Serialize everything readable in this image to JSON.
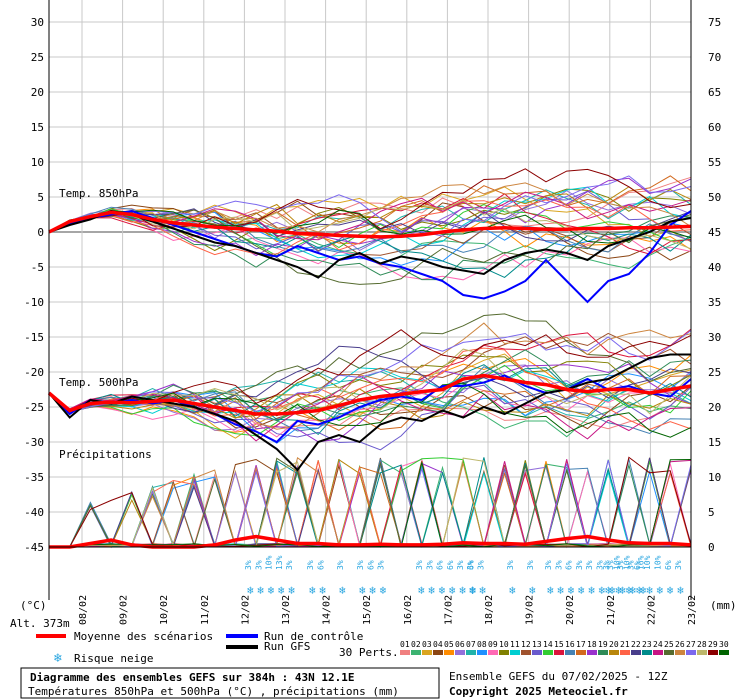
{
  "labels": {
    "t850": "Temp. 850hPa",
    "t500": "Temp. 500hPa",
    "precip": "Précipitations",
    "unit_left": "(°C)",
    "unit_right": "(mm)",
    "altitude": "Alt. 373m"
  },
  "legend": {
    "mean": "Moyenne des scénarios",
    "control": "Run de contrôle",
    "gfs": "Run GFS",
    "snow": "Risque neige",
    "perts": "30 Perts."
  },
  "footer": {
    "title": "Diagramme des ensembles GEFS sur 384h : 43N 12.1E",
    "subtitle": "Températures 850hPa et 500hPa (°C) , précipitations (mm)",
    "run": "Ensemble GEFS du 07/02/2025 - 12Z",
    "copyright": "Copyright 2025 Meteociel.fr"
  },
  "colors": {
    "mean": "#ff0000",
    "control": "#0000ff",
    "gfs": "#000000",
    "snow": "#2aa6e0",
    "members": [
      "#f08080",
      "#3cb371",
      "#daa520",
      "#8b4513",
      "#ff8c00",
      "#9370db",
      "#20b2aa",
      "#1e90ff",
      "#ff69b4",
      "#808000",
      "#00ced1",
      "#a0522d",
      "#6a5acd",
      "#32cd32",
      "#dc143c",
      "#4682b4",
      "#d2691e",
      "#9932cc",
      "#2e8b57",
      "#b8860b",
      "#ff6347",
      "#483d8b",
      "#008b8b",
      "#c71585",
      "#556b2f",
      "#cd853f",
      "#7b68ee",
      "#bdb76b",
      "#8b0000",
      "#006400"
    ]
  },
  "chart_data": {
    "type": "line",
    "x_dates": [
      "08/02",
      "09/02",
      "10/02",
      "11/02",
      "12/02",
      "13/02",
      "14/02",
      "15/02",
      "16/02",
      "17/02",
      "18/02",
      "19/02",
      "20/02",
      "21/02",
      "22/02",
      "23/02"
    ],
    "y_left_ticks": [
      30,
      25,
      20,
      15,
      10,
      5,
      0,
      -5,
      -10,
      -15,
      -20,
      -25,
      -30,
      -35,
      -40,
      -45
    ],
    "y_right_ticks": [
      75,
      70,
      65,
      60,
      55,
      50,
      45,
      40,
      35,
      30,
      25,
      20,
      15,
      10,
      5,
      0
    ],
    "members_count": 30,
    "member_ids": [
      "01",
      "02",
      "03",
      "04",
      "05",
      "06",
      "07",
      "08",
      "09",
      "10",
      "11",
      "12",
      "13",
      "14",
      "15",
      "16",
      "17",
      "18",
      "19",
      "20",
      "21",
      "22",
      "23",
      "24",
      "25",
      "26",
      "27",
      "28",
      "29",
      "30"
    ],
    "t850_mean": [
      0.0,
      1.5,
      2.2,
      2.8,
      2.5,
      1.8,
      1.3,
      1.0,
      0.7,
      0.5,
      0.3,
      0.1,
      -0.2,
      -0.3,
      -0.5,
      -0.6,
      -0.7,
      -0.6,
      -0.4,
      0.0,
      0.3,
      0.5,
      0.6,
      0.5,
      0.4,
      0.4,
      0.5,
      0.5,
      0.6,
      0.6,
      0.7,
      0.8
    ],
    "t850_control": [
      0.0,
      1.2,
      2.0,
      2.5,
      3.0,
      2.0,
      1.0,
      0.0,
      -1.0,
      -2.0,
      -3.0,
      -3.5,
      -2.0,
      -3.0,
      -4.0,
      -3.5,
      -4.5,
      -5.0,
      -6.0,
      -7.0,
      -9.0,
      -9.5,
      -8.5,
      -7.0,
      -4.0,
      -7.0,
      -10.0,
      -7.0,
      -6.0,
      -3.0,
      1.0,
      3.0
    ],
    "t850_gfs": [
      0.0,
      1.0,
      1.8,
      3.0,
      2.5,
      1.5,
      0.5,
      -0.5,
      -1.5,
      -2.0,
      -3.0,
      -4.0,
      -5.0,
      -6.5,
      -4.0,
      -3.0,
      -4.5,
      -3.5,
      -4.0,
      -5.0,
      -5.5,
      -6.0,
      -4.0,
      -3.0,
      -2.5,
      -3.0,
      -4.0,
      -2.0,
      -1.0,
      0.0,
      1.5,
      2.0
    ],
    "t500_mean": [
      -23.0,
      -25.5,
      -24.5,
      -24.3,
      -24.4,
      -24.2,
      -24.0,
      -24.5,
      -25.0,
      -25.5,
      -26.0,
      -26.0,
      -25.8,
      -25.5,
      -24.8,
      -24.0,
      -23.5,
      -23.2,
      -22.8,
      -22.5,
      -21.0,
      -20.5,
      -21.0,
      -21.5,
      -21.8,
      -22.5,
      -22.8,
      -22.5,
      -22.5,
      -23.0,
      -22.5,
      -22.0
    ],
    "t500_control": [
      -23.0,
      -26.0,
      -24.0,
      -24.5,
      -24.0,
      -24.5,
      -24.0,
      -25.0,
      -26.0,
      -27.5,
      -28.5,
      -30.0,
      -27.0,
      -27.5,
      -26.5,
      -25.0,
      -24.0,
      -23.5,
      -24.0,
      -22.0,
      -22.0,
      -21.5,
      -20.5,
      -22.0,
      -23.0,
      -22.5,
      -21.0,
      -22.5,
      -22.0,
      -23.0,
      -23.5,
      -21.0
    ],
    "t500_gfs": [
      -23.0,
      -26.5,
      -24.0,
      -24.5,
      -23.5,
      -24.0,
      -24.5,
      -25.0,
      -26.0,
      -27.0,
      -29.0,
      -31.0,
      -34.0,
      -30.0,
      -29.0,
      -30.0,
      -27.5,
      -26.5,
      -27.0,
      -25.5,
      -26.5,
      -25.0,
      -26.0,
      -24.5,
      -23.0,
      -22.5,
      -21.5,
      -21.0,
      -19.5,
      -18.0,
      -17.5,
      -17.5
    ],
    "precip_mean_mm": [
      0,
      0,
      0.5,
      1.0,
      0.3,
      0,
      0,
      0,
      0.3,
      1.0,
      1.5,
      1.0,
      0.5,
      0.5,
      0.3,
      0.3,
      0.4,
      0.3,
      0.3,
      0.4,
      0.6,
      0.5,
      0.5,
      0.4,
      0.8,
      1.2,
      1.5,
      1.0,
      0.6,
      0.5,
      0.5,
      0.3
    ],
    "snow_risk": [
      {
        "date": "12/02",
        "values": [
          "3%",
          "3%",
          "10%",
          "13%",
          "3%"
        ]
      },
      {
        "date": "14/02",
        "values": [
          "3%",
          "6%"
        ]
      },
      {
        "date": "14/02b",
        "values": [
          "3%"
        ]
      },
      {
        "date": "15/02",
        "values": [
          "3%",
          "6%",
          "3%"
        ]
      },
      {
        "date": "17/02",
        "values": [
          "3%",
          "3%",
          "6%",
          "6%",
          "3%",
          "6%"
        ]
      },
      {
        "date": "18/02",
        "values": [
          "3%",
          "3%"
        ]
      },
      {
        "date": "19/02",
        "values": [
          "3%"
        ]
      },
      {
        "date": "19/02b",
        "values": [
          "3%"
        ]
      },
      {
        "date": "20/02",
        "values": [
          "3%",
          "3%",
          "6%",
          "3%",
          "3%",
          "3%",
          "3%",
          "3%",
          "3%",
          "16%"
        ]
      },
      {
        "date": "21/02",
        "values": [
          "3%",
          "10%",
          "10%",
          "6%",
          "10%",
          "10%",
          "6%",
          "3%"
        ]
      }
    ]
  }
}
